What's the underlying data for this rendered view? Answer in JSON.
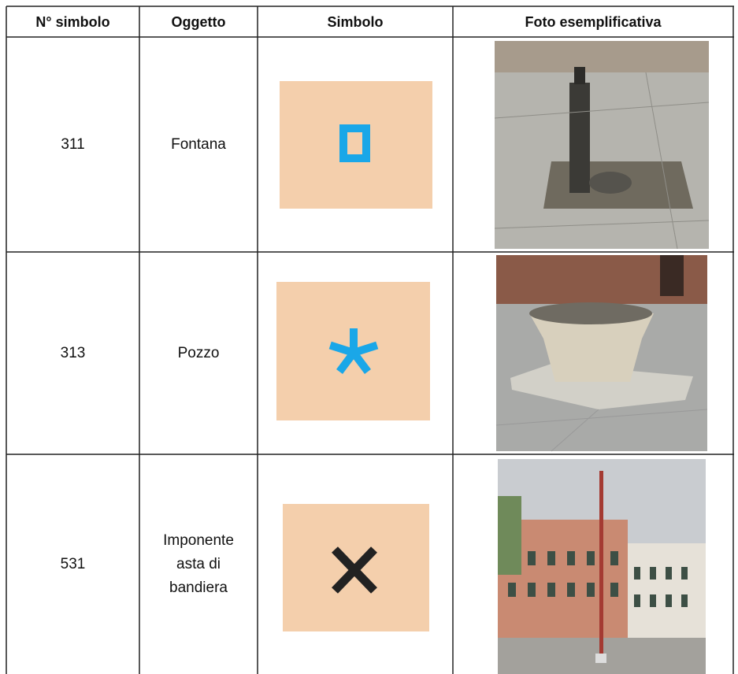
{
  "table": {
    "header": [
      "N° simbolo",
      "Oggetto",
      "Simbolo",
      "Foto esemplificativa"
    ],
    "rows": [
      [
        "311",
        "Fontana"
      ],
      [
        "313",
        "Pozzo"
      ],
      [
        "531",
        "Imponente asta di bandiera"
      ]
    ]
  }
}
